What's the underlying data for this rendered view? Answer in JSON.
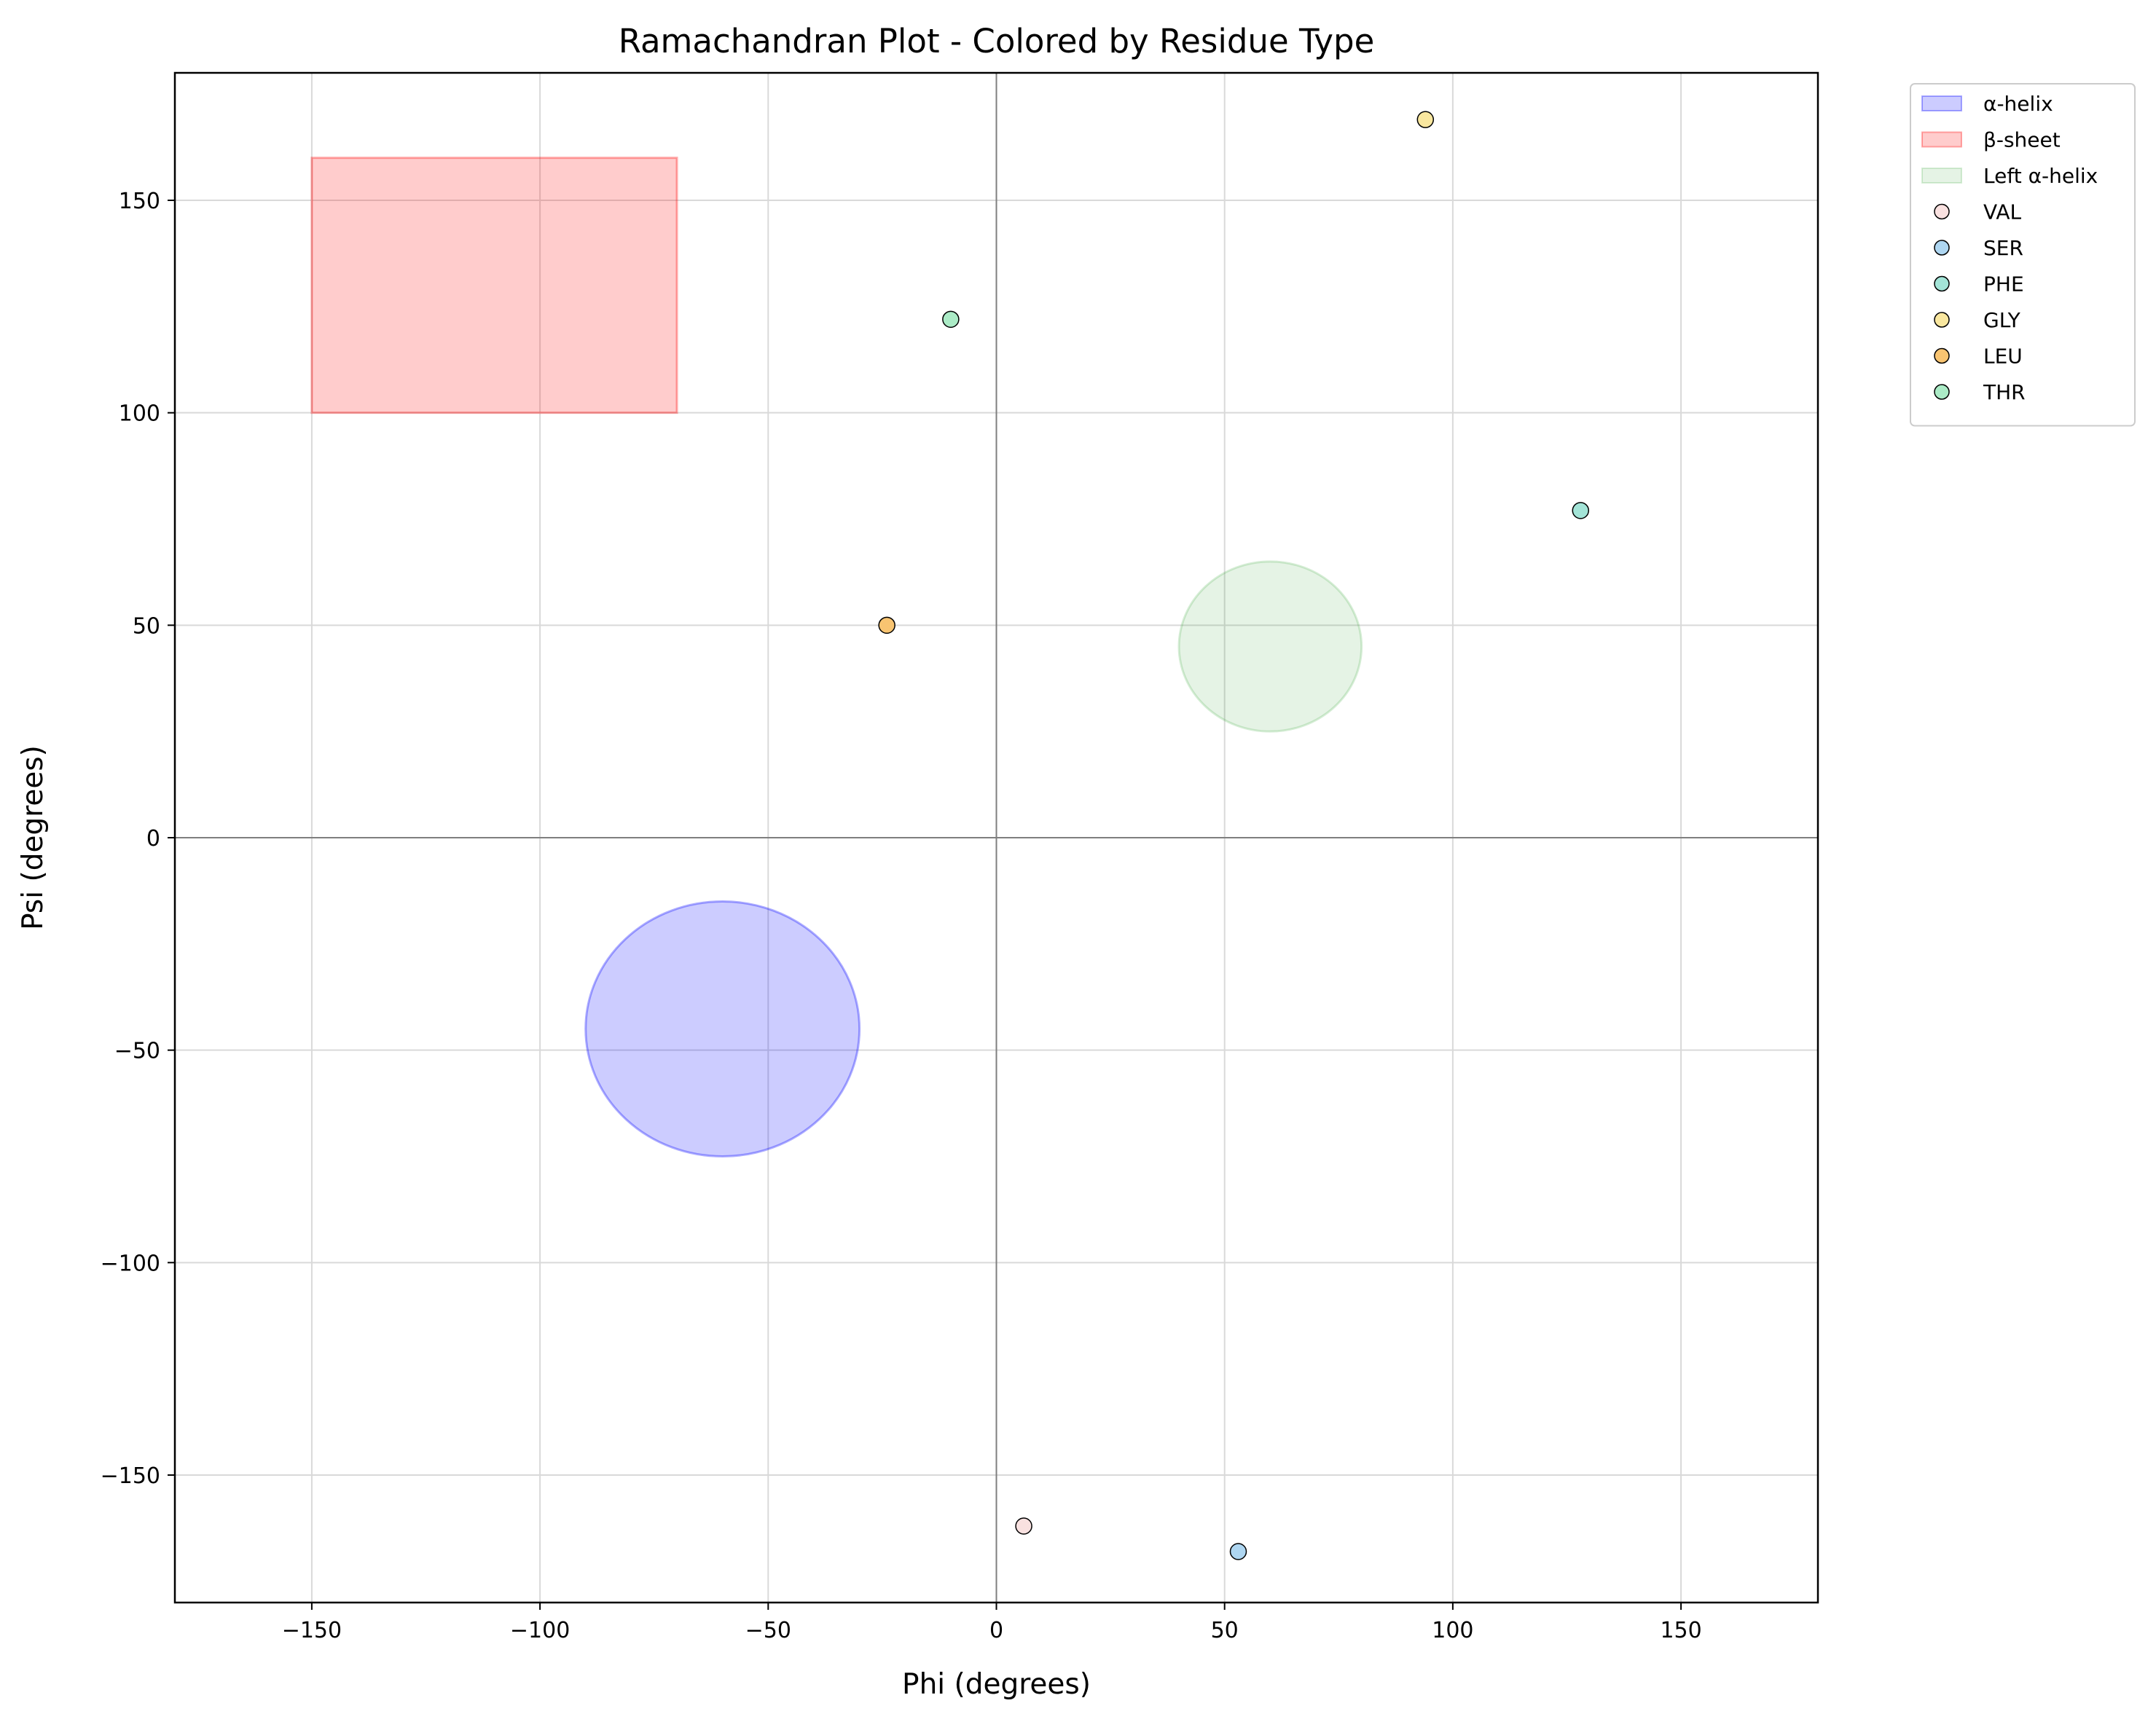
{
  "chart_data": {
    "type": "scatter",
    "title": "Ramachandran Plot - Colored by Residue Type",
    "xlabel": "Phi (degrees)",
    "ylabel": "Psi (degrees)",
    "xlim": [
      -180,
      180
    ],
    "ylim": [
      -180,
      180
    ],
    "xticks": [
      -150,
      -100,
      -50,
      0,
      50,
      100,
      150
    ],
    "yticks": [
      -150,
      -100,
      -50,
      0,
      50,
      100,
      150
    ],
    "grid": true,
    "legend_position": "outside-top-right",
    "regions": [
      {
        "name": "α-helix",
        "shape": "ellipse",
        "center": [
          -60,
          -45
        ],
        "width": 60,
        "height": 60,
        "fill": "#0000ff",
        "edge": "#0000ff",
        "alpha": 0.2
      },
      {
        "name": "β-sheet",
        "shape": "rectangle",
        "x": [
          -150,
          -70
        ],
        "y": [
          100,
          160
        ],
        "fill": "#ff0000",
        "edge": "#ff0000",
        "alpha": 0.2
      },
      {
        "name": "Left α-helix",
        "shape": "ellipse",
        "center": [
          60,
          45
        ],
        "width": 40,
        "height": 40,
        "fill": "#2ca02c",
        "edge": "#2ca02c",
        "alpha": 0.12
      }
    ],
    "series": [
      {
        "name": "VAL",
        "color": "#f9e1e0",
        "points": [
          [
            6,
            -162
          ]
        ]
      },
      {
        "name": "SER",
        "color": "#aed6f1",
        "points": [
          [
            53,
            -168
          ]
        ]
      },
      {
        "name": "PHE",
        "color": "#a3e4d7",
        "points": [
          [
            128,
            77
          ]
        ]
      },
      {
        "name": "GLY",
        "color": "#f9e79f",
        "points": [
          [
            94,
            169
          ]
        ]
      },
      {
        "name": "LEU",
        "color": "#f8c471",
        "points": [
          [
            -24,
            50
          ]
        ]
      },
      {
        "name": "THR",
        "color": "#abebc6",
        "points": [
          [
            -10,
            122
          ]
        ]
      }
    ]
  }
}
